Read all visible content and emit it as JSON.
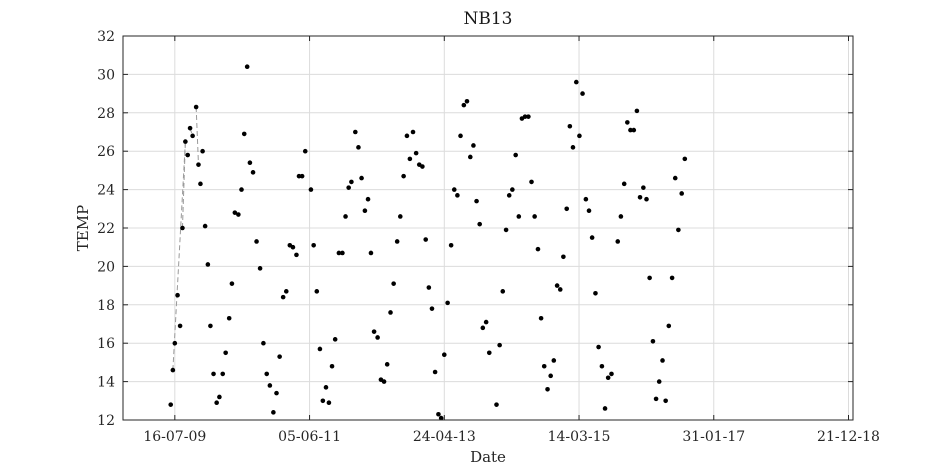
{
  "chart_data": {
    "type": "scatter",
    "title": "NB13",
    "xlabel": "Date",
    "ylabel": "TEMP",
    "ylim": [
      12,
      32
    ],
    "xlim": [
      "2008-10-24",
      "2019-01-13"
    ],
    "yticks": [
      12,
      14,
      16,
      18,
      20,
      22,
      24,
      26,
      28,
      30,
      32
    ],
    "xticks": [
      {
        "date": "2009-07-16",
        "label": "16-07-09"
      },
      {
        "date": "2011-06-05",
        "label": "05-06-11"
      },
      {
        "date": "2013-04-24",
        "label": "24-04-13"
      },
      {
        "date": "2015-03-14",
        "label": "14-03-15"
      },
      {
        "date": "2017-01-31",
        "label": "31-01-17"
      },
      {
        "date": "2018-12-21",
        "label": "21-12-18"
      }
    ],
    "grid": true,
    "colors": {
      "points": "#000000",
      "connector": "#9a9a9a",
      "grid": "#dcdcdc",
      "axis": "#262626"
    },
    "series": [
      {
        "points": [
          [
            "2009-06-25",
            12.8
          ],
          [
            "2009-07-06",
            14.6
          ],
          [
            "2009-07-16",
            16.0
          ],
          [
            "2009-07-30",
            18.5
          ],
          [
            "2009-08-12",
            16.9
          ],
          [
            "2009-08-24",
            22.0
          ],
          [
            "2009-09-08",
            26.5
          ],
          [
            "2009-09-20",
            25.8
          ],
          [
            "2009-10-02",
            27.2
          ],
          [
            "2009-10-15",
            26.8
          ],
          [
            "2009-11-02",
            28.3
          ],
          [
            "2009-11-14",
            25.3
          ],
          [
            "2009-11-24",
            24.3
          ],
          [
            "2009-12-05",
            26.0
          ],
          [
            "2009-12-18",
            22.1
          ],
          [
            "2010-01-01",
            20.1
          ],
          [
            "2010-01-14",
            16.9
          ],
          [
            "2010-01-30",
            14.4
          ],
          [
            "2010-02-15",
            12.9
          ],
          [
            "2010-03-01",
            13.2
          ],
          [
            "2010-03-18",
            14.4
          ],
          [
            "2010-04-02",
            15.5
          ],
          [
            "2010-04-20",
            17.3
          ],
          [
            "2010-05-04",
            19.1
          ],
          [
            "2010-05-19",
            22.8
          ],
          [
            "2010-06-06",
            22.7
          ],
          [
            "2010-06-22",
            24.0
          ],
          [
            "2010-07-06",
            26.9
          ],
          [
            "2010-07-21",
            30.4
          ],
          [
            "2010-08-04",
            25.4
          ],
          [
            "2010-08-20",
            24.9
          ],
          [
            "2010-09-07",
            21.3
          ],
          [
            "2010-09-25",
            19.9
          ],
          [
            "2010-10-12",
            16.0
          ],
          [
            "2010-10-29",
            14.4
          ],
          [
            "2010-11-14",
            13.8
          ],
          [
            "2010-12-02",
            12.4
          ],
          [
            "2010-12-18",
            13.4
          ],
          [
            "2011-01-03",
            15.3
          ],
          [
            "2011-01-21",
            18.4
          ],
          [
            "2011-02-06",
            18.7
          ],
          [
            "2011-02-24",
            21.1
          ],
          [
            "2011-03-12",
            21.0
          ],
          [
            "2011-03-30",
            20.6
          ],
          [
            "2011-04-12",
            24.7
          ],
          [
            "2011-04-28",
            24.7
          ],
          [
            "2011-05-14",
            26.0
          ],
          [
            "2011-06-12",
            24.0
          ],
          [
            "2011-06-26",
            21.1
          ],
          [
            "2011-07-12",
            18.7
          ],
          [
            "2011-07-28",
            15.7
          ],
          [
            "2011-08-12",
            13.0
          ],
          [
            "2011-08-28",
            13.7
          ],
          [
            "2011-09-12",
            12.9
          ],
          [
            "2011-09-28",
            14.8
          ],
          [
            "2011-10-14",
            16.2
          ],
          [
            "2011-11-02",
            20.7
          ],
          [
            "2011-11-20",
            20.7
          ],
          [
            "2011-12-06",
            22.6
          ],
          [
            "2011-12-22",
            24.1
          ],
          [
            "2012-01-05",
            24.4
          ],
          [
            "2012-01-25",
            27.0
          ],
          [
            "2012-02-10",
            26.2
          ],
          [
            "2012-02-26",
            24.6
          ],
          [
            "2012-03-14",
            22.9
          ],
          [
            "2012-03-30",
            23.5
          ],
          [
            "2012-04-14",
            20.7
          ],
          [
            "2012-04-30",
            16.6
          ],
          [
            "2012-05-18",
            16.3
          ],
          [
            "2012-06-04",
            14.1
          ],
          [
            "2012-06-20",
            14.0
          ],
          [
            "2012-07-06",
            14.9
          ],
          [
            "2012-07-23",
            17.6
          ],
          [
            "2012-08-08",
            19.1
          ],
          [
            "2012-08-26",
            21.3
          ],
          [
            "2012-09-11",
            22.6
          ],
          [
            "2012-09-28",
            24.7
          ],
          [
            "2012-10-15",
            26.8
          ],
          [
            "2012-10-30",
            25.6
          ],
          [
            "2012-11-15",
            27.0
          ],
          [
            "2012-12-01",
            25.9
          ],
          [
            "2012-12-17",
            25.3
          ],
          [
            "2013-01-02",
            25.2
          ],
          [
            "2013-01-19",
            21.4
          ],
          [
            "2013-02-04",
            18.9
          ],
          [
            "2013-02-20",
            17.8
          ],
          [
            "2013-03-08",
            14.5
          ],
          [
            "2013-03-25",
            12.3
          ],
          [
            "2013-04-08",
            12.1
          ],
          [
            "2013-04-24",
            15.4
          ],
          [
            "2013-05-11",
            18.1
          ],
          [
            "2013-05-29",
            21.1
          ],
          [
            "2013-06-14",
            24.0
          ],
          [
            "2013-06-30",
            23.7
          ],
          [
            "2013-07-16",
            26.8
          ],
          [
            "2013-08-02",
            28.4
          ],
          [
            "2013-08-18",
            28.6
          ],
          [
            "2013-09-04",
            25.7
          ],
          [
            "2013-09-20",
            26.3
          ],
          [
            "2013-10-06",
            23.4
          ],
          [
            "2013-10-22",
            22.2
          ],
          [
            "2013-11-07",
            16.8
          ],
          [
            "2013-11-24",
            17.1
          ],
          [
            "2013-12-10",
            15.5
          ],
          [
            "2014-01-16",
            12.8
          ],
          [
            "2014-02-01",
            15.9
          ],
          [
            "2014-02-17",
            18.7
          ],
          [
            "2014-03-06",
            21.9
          ],
          [
            "2014-03-22",
            23.7
          ],
          [
            "2014-04-07",
            24.0
          ],
          [
            "2014-04-24",
            25.8
          ],
          [
            "2014-05-10",
            22.6
          ],
          [
            "2014-05-26",
            27.7
          ],
          [
            "2014-06-11",
            27.8
          ],
          [
            "2014-06-28",
            27.8
          ],
          [
            "2014-07-14",
            24.4
          ],
          [
            "2014-07-30",
            22.6
          ],
          [
            "2014-08-16",
            20.9
          ],
          [
            "2014-09-01",
            17.3
          ],
          [
            "2014-09-17",
            14.8
          ],
          [
            "2014-10-04",
            13.6
          ],
          [
            "2014-10-20",
            14.3
          ],
          [
            "2014-11-05",
            15.1
          ],
          [
            "2014-11-22",
            19.0
          ],
          [
            "2014-12-08",
            18.8
          ],
          [
            "2014-12-24",
            20.5
          ],
          [
            "2015-01-10",
            23.0
          ],
          [
            "2015-01-26",
            27.3
          ],
          [
            "2015-02-11",
            26.2
          ],
          [
            "2015-02-28",
            29.6
          ],
          [
            "2015-03-16",
            26.8
          ],
          [
            "2015-04-01",
            29.0
          ],
          [
            "2015-04-18",
            23.5
          ],
          [
            "2015-05-04",
            22.9
          ],
          [
            "2015-05-20",
            21.5
          ],
          [
            "2015-06-06",
            18.6
          ],
          [
            "2015-06-22",
            15.8
          ],
          [
            "2015-07-09",
            14.8
          ],
          [
            "2015-07-25",
            12.6
          ],
          [
            "2015-08-10",
            14.2
          ],
          [
            "2015-08-27",
            14.4
          ],
          [
            "2015-09-28",
            21.3
          ],
          [
            "2015-10-14",
            22.6
          ],
          [
            "2015-10-31",
            24.3
          ],
          [
            "2015-11-16",
            27.5
          ],
          [
            "2015-12-02",
            27.1
          ],
          [
            "2015-12-19",
            27.1
          ],
          [
            "2016-01-04",
            28.1
          ],
          [
            "2016-01-20",
            23.6
          ],
          [
            "2016-02-06",
            24.1
          ],
          [
            "2016-02-22",
            23.5
          ],
          [
            "2016-03-09",
            19.4
          ],
          [
            "2016-03-26",
            16.1
          ],
          [
            "2016-04-11",
            13.1
          ],
          [
            "2016-04-27",
            14.0
          ],
          [
            "2016-05-14",
            15.1
          ],
          [
            "2016-05-30",
            13.0
          ],
          [
            "2016-06-15",
            16.9
          ],
          [
            "2016-07-02",
            19.4
          ],
          [
            "2016-07-18",
            24.6
          ],
          [
            "2016-08-03",
            21.9
          ],
          [
            "2016-08-20",
            23.8
          ],
          [
            "2016-09-05",
            25.6
          ]
        ],
        "connected": [
          [
            1,
            6
          ],
          [
            5,
            6
          ],
          [
            8,
            9
          ],
          [
            10,
            11
          ]
        ]
      }
    ]
  }
}
